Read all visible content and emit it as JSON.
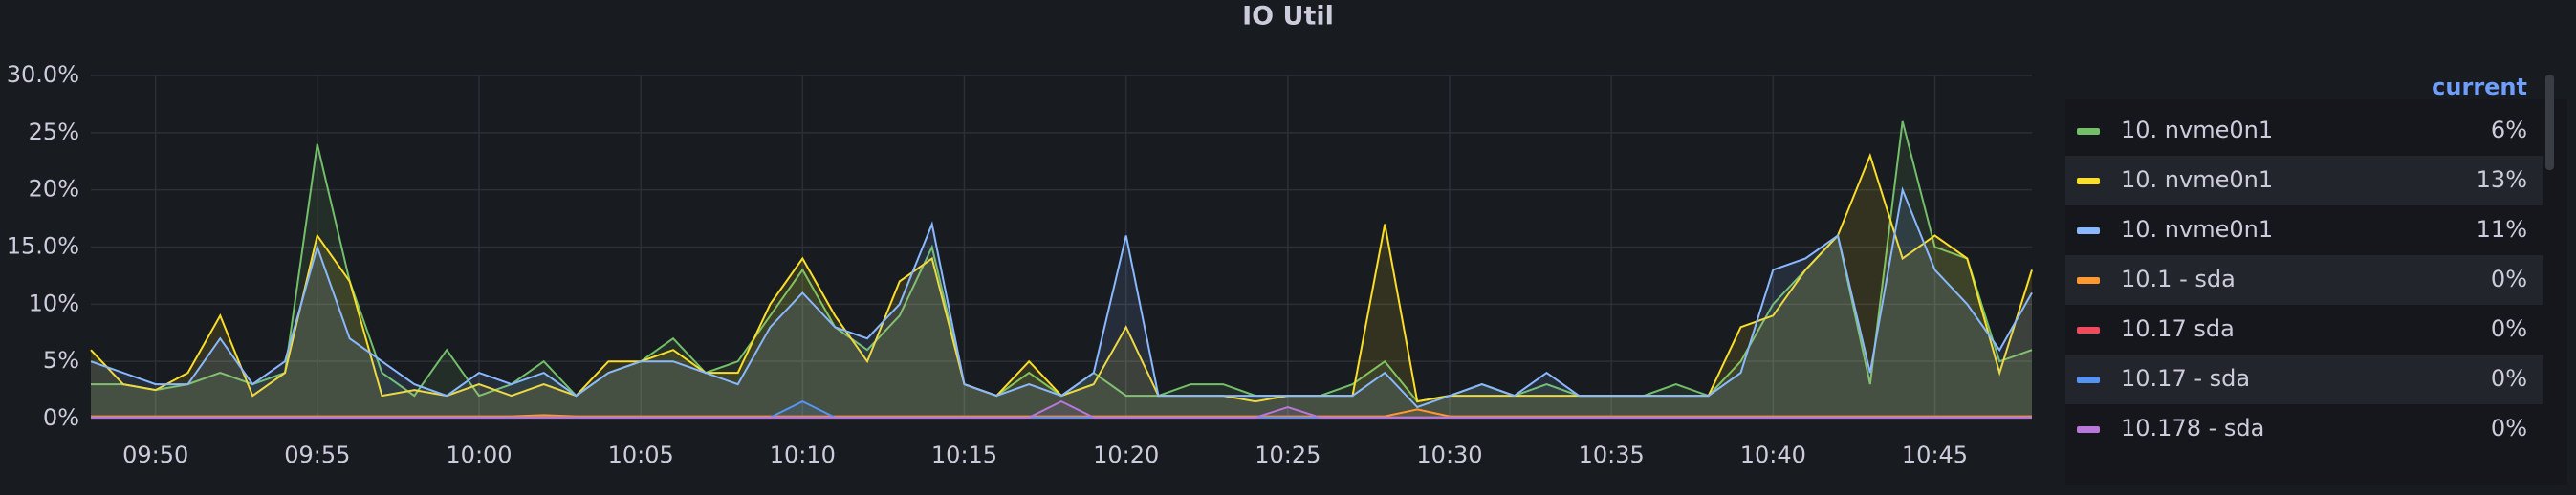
{
  "chart_data": {
    "type": "line",
    "title": "IO Util",
    "legend_title": "current",
    "grid": true,
    "fill_opacity": 0.12,
    "x": [
      "09:48",
      "09:49",
      "09:50",
      "09:51",
      "09:52",
      "09:53",
      "09:54",
      "09:55",
      "09:56",
      "09:57",
      "09:58",
      "09:59",
      "10:00",
      "10:01",
      "10:02",
      "10:03",
      "10:04",
      "10:05",
      "10:06",
      "10:07",
      "10:08",
      "10:09",
      "10:10",
      "10:11",
      "10:12",
      "10:13",
      "10:14",
      "10:15",
      "10:16",
      "10:17",
      "10:18",
      "10:19",
      "10:20",
      "10:21",
      "10:22",
      "10:23",
      "10:24",
      "10:25",
      "10:26",
      "10:27",
      "10:28",
      "10:29",
      "10:30",
      "10:31",
      "10:32",
      "10:33",
      "10:34",
      "10:35",
      "10:36",
      "10:37",
      "10:38",
      "10:39",
      "10:40",
      "10:41",
      "10:42",
      "10:43",
      "10:44",
      "10:45",
      "10:46",
      "10:47",
      "10:48"
    ],
    "xlim": [
      "09:48",
      "10:48"
    ],
    "xticks": [
      "09:50",
      "09:55",
      "10:00",
      "10:05",
      "10:10",
      "10:15",
      "10:20",
      "10:25",
      "10:30",
      "10:35",
      "10:40",
      "10:45"
    ],
    "ylim": [
      0,
      30
    ],
    "yticks": [
      {
        "value": 0,
        "label": "0%"
      },
      {
        "value": 5,
        "label": "5%"
      },
      {
        "value": 10,
        "label": "10%"
      },
      {
        "value": 15,
        "label": "15.0%"
      },
      {
        "value": 20,
        "label": "20%"
      },
      {
        "value": 25,
        "label": "25%"
      },
      {
        "value": 30,
        "label": "30.0%"
      }
    ],
    "series": [
      {
        "name": "10. nvme0n1",
        "color": "#73bf69",
        "current": "6%",
        "values": [
          3,
          3,
          2.5,
          3,
          4,
          3,
          4,
          24,
          12,
          4,
          2,
          6,
          2,
          3,
          5,
          2,
          4,
          5,
          7,
          4,
          5,
          9,
          13,
          8,
          6,
          9,
          15,
          3,
          2,
          4,
          2,
          4,
          2,
          2,
          3,
          3,
          2,
          2,
          2,
          3,
          5,
          1.5,
          2,
          3,
          2,
          3,
          2,
          2,
          2,
          3,
          2,
          5,
          10,
          13,
          16,
          3,
          26,
          15,
          14,
          5,
          6
        ]
      },
      {
        "name": "10. nvme0n1",
        "color": "#fade2a",
        "current": "13%",
        "values": [
          6,
          3,
          2.5,
          4,
          9,
          2,
          4,
          16,
          12,
          2,
          2.5,
          2,
          3,
          2,
          3,
          2,
          5,
          5,
          6,
          4,
          4,
          10,
          14,
          9,
          5,
          12,
          14,
          3,
          2,
          5,
          2,
          3,
          8,
          2,
          2,
          2,
          1.5,
          2,
          2,
          2,
          17,
          1.5,
          2,
          2,
          2,
          2,
          2,
          2,
          2,
          2,
          2,
          8,
          9,
          13,
          16,
          23,
          14,
          16,
          14,
          4,
          13
        ]
      },
      {
        "name": "10. nvme0n1",
        "color": "#8ab8ff",
        "current": "11%",
        "values": [
          5,
          4,
          3,
          3,
          7,
          3,
          5,
          15,
          7,
          5,
          3,
          2,
          4,
          3,
          4,
          2,
          4,
          5,
          5,
          4,
          3,
          8,
          11,
          8,
          7,
          10,
          17,
          3,
          2,
          3,
          2,
          4,
          16,
          2,
          2,
          2,
          2,
          2,
          2,
          2,
          4,
          1,
          2,
          3,
          2,
          4,
          2,
          2,
          2,
          2,
          2,
          4,
          13,
          14,
          16,
          4,
          20,
          13,
          10,
          6,
          11
        ]
      },
      {
        "name": "10.1 - sda",
        "color": "#ff9830",
        "current": "0%",
        "values": [
          0.2,
          0.2,
          0.2,
          0.2,
          0.2,
          0.2,
          0.2,
          0.2,
          0.2,
          0.2,
          0.2,
          0.2,
          0.2,
          0.2,
          0.3,
          0.2,
          0.2,
          0.2,
          0.2,
          0.2,
          0.2,
          0.2,
          0.2,
          0.2,
          0.2,
          0.2,
          0.2,
          0.2,
          0.2,
          0.2,
          0.2,
          0.2,
          0.2,
          0.2,
          0.2,
          0.2,
          0.2,
          0.2,
          0.2,
          0.2,
          0.2,
          0.8,
          0.2,
          0.2,
          0.2,
          0.2,
          0.2,
          0.2,
          0.2,
          0.2,
          0.2,
          0.2,
          0.2,
          0.2,
          0.2,
          0.2,
          0.2,
          0.2,
          0.2,
          0.2,
          0.2
        ]
      },
      {
        "name": "10.17 sda",
        "color": "#f2495c",
        "current": "0%",
        "values": [
          0.1,
          0.1,
          0.1,
          0.1,
          0.1,
          0.1,
          0.1,
          0.1,
          0.1,
          0.1,
          0.1,
          0.1,
          0.1,
          0.1,
          0.1,
          0.1,
          0.1,
          0.1,
          0.1,
          0.1,
          0.1,
          0.1,
          0.1,
          0.1,
          0.1,
          0.1,
          0.1,
          0.1,
          0.1,
          0.1,
          0.1,
          0.1,
          0.1,
          0.1,
          0.1,
          0.1,
          0.1,
          0.1,
          0.1,
          0.1,
          0.1,
          0.1,
          0.1,
          0.1,
          0.1,
          0.1,
          0.1,
          0.1,
          0.1,
          0.1,
          0.1,
          0.1,
          0.1,
          0.1,
          0.1,
          0.1,
          0.1,
          0.1,
          0.1,
          0.1,
          0.1
        ]
      },
      {
        "name": "10.17 - sda",
        "color": "#5794f2",
        "current": "0%",
        "values": [
          0.1,
          0.1,
          0.1,
          0.1,
          0.1,
          0.1,
          0.1,
          0.1,
          0.1,
          0.1,
          0.1,
          0.1,
          0.1,
          0.1,
          0.1,
          0.1,
          0.1,
          0.1,
          0.1,
          0.1,
          0.1,
          0.1,
          1.5,
          0.1,
          0.1,
          0.1,
          0.1,
          0.1,
          0.1,
          0.1,
          0.1,
          0.1,
          0.1,
          0.1,
          0.1,
          0.1,
          0.1,
          0.1,
          0.1,
          0.1,
          0.1,
          0.1,
          0.1,
          0.1,
          0.1,
          0.1,
          0.1,
          0.1,
          0.1,
          0.1,
          0.1,
          0.1,
          0.1,
          0.1,
          0.1,
          0.1,
          0.1,
          0.1,
          0.1,
          0.1,
          0.1
        ]
      },
      {
        "name": "10.178 - sda",
        "color": "#b877d9",
        "current": "0%",
        "values": [
          0.1,
          0.1,
          0.1,
          0.1,
          0.1,
          0.1,
          0.1,
          0.1,
          0.1,
          0.1,
          0.1,
          0.1,
          0.1,
          0.1,
          0.1,
          0.1,
          0.1,
          0.1,
          0.1,
          0.1,
          0.1,
          0.1,
          0.1,
          0.1,
          0.1,
          0.1,
          0.1,
          0.1,
          0.1,
          0.1,
          1.5,
          0.1,
          0.1,
          0.1,
          0.1,
          0.1,
          0.1,
          1,
          0.1,
          0.1,
          0.1,
          0.1,
          0.1,
          0.1,
          0.1,
          0.1,
          0.1,
          0.1,
          0.1,
          0.1,
          0.1,
          0.1,
          0.1,
          0.1,
          0.1,
          0.1,
          0.1,
          0.1,
          0.1,
          0.1,
          0.1
        ]
      }
    ]
  }
}
